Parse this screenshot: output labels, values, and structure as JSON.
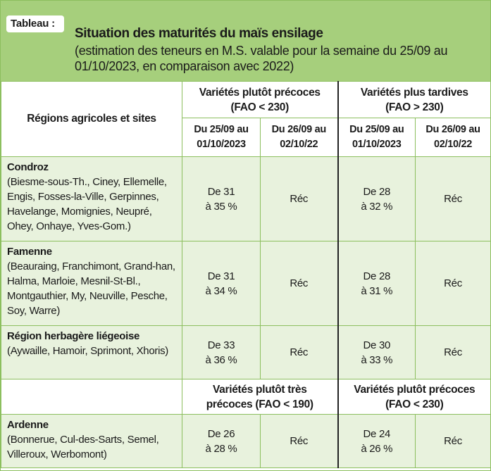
{
  "tag": "Tableau :",
  "title": "Situation des maturités du maïs ensilage",
  "subtitle": "(estimation des teneurs en M.S. valable pour la semaine du 25/09 au 01/10/2023, en comparaison avec 2022)",
  "colors": {
    "header_bg": "#a6cf7c",
    "row_bg": "#e8f2dd",
    "border": "#8cbf5e"
  },
  "table": {
    "region_header": "Régions agricoles et sites",
    "groups": [
      {
        "line1": "Variétés plutôt précoces",
        "line2": "(FAO < 230)"
      },
      {
        "line1": "Variétés plus tardives",
        "line2": "(FAO > 230)"
      }
    ],
    "subheaders": [
      {
        "line1": "Du 25/09 au",
        "line2": "01/10/2023"
      },
      {
        "line1": "Du 26/09 au",
        "line2": "02/10/22"
      },
      {
        "line1": "Du 25/09 au",
        "line2": "01/10/2023"
      },
      {
        "line1": "Du 26/09 au",
        "line2": "02/10/22"
      }
    ],
    "rows": [
      {
        "name": "Condroz",
        "sites": "(Biesme-sous-Th., Ciney, Ellemelle, Engis, Fosses-la-Ville, Gerpinnes, Havelange, Momignies, Neupré, Ohey, Onhaye, Yves-Gom.)",
        "early_2023": {
          "line1": "De 31",
          "line2": "à 35 %"
        },
        "early_2022": "Réc",
        "late_2023": {
          "line1": "De 28",
          "line2": "à 32 %"
        },
        "late_2022": "Réc"
      },
      {
        "name": "Famenne",
        "sites": "(Beauraing, Franchimont, Grand-han, Halma, Marloie, Mesnil-St-Bl., Montgauthier, My, Neuville, Pesche, Soy, Warre)",
        "early_2023": {
          "line1": "De 31",
          "line2": "à 34 %"
        },
        "early_2022": "Réc",
        "late_2023": {
          "line1": "De 28",
          "line2": "à 31 %"
        },
        "late_2022": "Réc"
      },
      {
        "name": "Région herbagère liégeoise",
        "sites": "(Aywaille, Hamoir, Sprimont, Xhoris)",
        "early_2023": {
          "line1": "De 33",
          "line2": "à 36 %"
        },
        "early_2022": "Réc",
        "late_2023": {
          "line1": "De 30",
          "line2": "à 33 %"
        },
        "late_2022": "Réc"
      }
    ],
    "ardenne_groups": [
      {
        "line1": "Variétés plutôt très",
        "line2": "précoces (FAO < 190)"
      },
      {
        "line1": "Variétés plutôt précoces",
        "line2": "(FAO < 230)"
      }
    ],
    "ardenne": {
      "name": "Ardenne",
      "sites": "(Bonnerue, Cul-des-Sarts, Semel, Villeroux, Werbomont)",
      "early_2023": {
        "line1": "De 26",
        "line2": "à 28 %"
      },
      "early_2022": "Réc",
      "late_2023": {
        "line1": "De 24",
        "line2": "à 26 %"
      },
      "late_2022": "Réc"
    }
  }
}
